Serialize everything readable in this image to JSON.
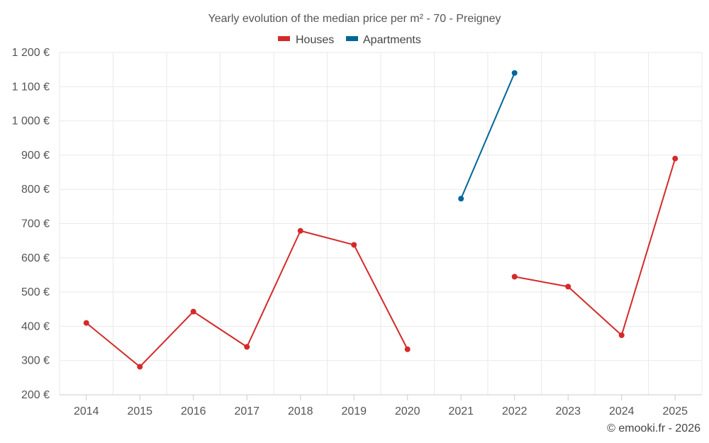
{
  "chart_data": {
    "type": "line",
    "title": "Yearly evolution of the median price per m² - 70 - Preigney",
    "categories": [
      "2014",
      "2015",
      "2016",
      "2017",
      "2018",
      "2019",
      "2020",
      "2021",
      "2022",
      "2023",
      "2024",
      "2025"
    ],
    "ylim": [
      200,
      1200
    ],
    "yticks": [
      200,
      300,
      400,
      500,
      600,
      700,
      800,
      900,
      1000,
      1100,
      1200
    ],
    "ytick_labels": [
      "200 €",
      "300 €",
      "400 €",
      "500 €",
      "600 €",
      "700 €",
      "800 €",
      "900 €",
      "1 000 €",
      "1 100 €",
      "1 200 €"
    ],
    "grid": true,
    "legend_position": "top-center",
    "series": [
      {
        "name": "Houses",
        "color": "#d42a2a",
        "values": [
          410,
          282,
          443,
          340,
          679,
          638,
          333,
          null,
          545,
          516,
          374,
          890
        ]
      },
      {
        "name": "Apartments",
        "color": "#006699",
        "values": [
          null,
          null,
          null,
          null,
          null,
          null,
          null,
          773,
          1140,
          null,
          null,
          null
        ]
      }
    ]
  },
  "credit": "© emooki.fr - 2026"
}
